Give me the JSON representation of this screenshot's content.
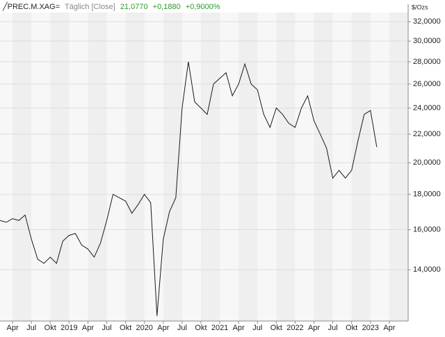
{
  "chart_data": {
    "type": "line",
    "header": {
      "symbol": "╱PREC.M.XAG=",
      "mode": "Täglich [Close]",
      "last": "21,0770",
      "change": "+0,1880",
      "change_pct": "+0,9000%"
    },
    "y_label": "$/Ozs",
    "log_y": true,
    "grid": true,
    "ylim": [
      11.8,
      33
    ],
    "yticks": [
      {
        "value": 14,
        "label": "14,0000"
      },
      {
        "value": 16,
        "label": "16,0000"
      },
      {
        "value": 18,
        "label": "18,0000"
      },
      {
        "value": 20,
        "label": "20,0000"
      },
      {
        "value": 22,
        "label": "22,0000"
      },
      {
        "value": 24,
        "label": "24,0000"
      },
      {
        "value": 26,
        "label": "26,0000"
      },
      {
        "value": 28,
        "label": "28,0000"
      },
      {
        "value": 30,
        "label": "30,0000"
      },
      {
        "value": 32,
        "label": "32,0000"
      }
    ],
    "xlim": [
      "2018-02",
      "2023-07"
    ],
    "xticks": [
      {
        "value": "2018-04",
        "label": "Apr"
      },
      {
        "value": "2018-07",
        "label": "Jul"
      },
      {
        "value": "2018-10",
        "label": "Okt"
      },
      {
        "value": "2019-01",
        "label": "2019"
      },
      {
        "value": "2019-04",
        "label": "Apr"
      },
      {
        "value": "2019-07",
        "label": "Jul"
      },
      {
        "value": "2019-10",
        "label": "Okt"
      },
      {
        "value": "2020-01",
        "label": "2020"
      },
      {
        "value": "2020-04",
        "label": "Apr"
      },
      {
        "value": "2020-07",
        "label": "Jul"
      },
      {
        "value": "2020-10",
        "label": "Okt"
      },
      {
        "value": "2021-01",
        "label": "2021"
      },
      {
        "value": "2021-04",
        "label": "Apr"
      },
      {
        "value": "2021-07",
        "label": "Jul"
      },
      {
        "value": "2021-10",
        "label": "Okt"
      },
      {
        "value": "2022-01",
        "label": "2022"
      },
      {
        "value": "2022-04",
        "label": "Apr"
      },
      {
        "value": "2022-07",
        "label": "Jul"
      },
      {
        "value": "2022-10",
        "label": "Okt"
      },
      {
        "value": "2023-01",
        "label": "2023"
      },
      {
        "value": "2023-04",
        "label": "Apr"
      }
    ],
    "x": [
      "2018-02",
      "2018-03",
      "2018-04",
      "2018-05",
      "2018-06",
      "2018-07",
      "2018-08",
      "2018-09",
      "2018-10",
      "2018-11",
      "2018-12",
      "2019-01",
      "2019-02",
      "2019-03",
      "2019-04",
      "2019-05",
      "2019-06",
      "2019-07",
      "2019-08",
      "2019-09",
      "2019-10",
      "2019-11",
      "2019-12",
      "2020-01",
      "2020-02",
      "2020-03",
      "2020-04",
      "2020-05",
      "2020-06",
      "2020-07",
      "2020-08",
      "2020-09",
      "2020-10",
      "2020-11",
      "2020-12",
      "2021-01",
      "2021-02",
      "2021-03",
      "2021-04",
      "2021-05",
      "2021-06",
      "2021-07",
      "2021-08",
      "2021-09",
      "2021-10",
      "2021-11",
      "2021-12",
      "2022-01",
      "2022-02",
      "2022-03",
      "2022-04",
      "2022-05",
      "2022-06",
      "2022-07",
      "2022-08",
      "2022-09",
      "2022-10",
      "2022-11",
      "2022-12",
      "2023-01",
      "2023-02"
    ],
    "series": [
      {
        "name": "PREC.M.XAG=",
        "color": "#1a1a1a",
        "values": [
          16.5,
          16.4,
          16.6,
          16.5,
          16.8,
          15.5,
          14.5,
          14.3,
          14.6,
          14.3,
          15.4,
          15.7,
          15.8,
          15.2,
          15.0,
          14.6,
          15.3,
          16.5,
          18.0,
          17.8,
          17.6,
          16.9,
          17.4,
          18.0,
          17.5,
          12.0,
          15.5,
          17.0,
          17.8,
          24.0,
          28.0,
          24.5,
          24.0,
          23.5,
          26.0,
          26.5,
          27.0,
          25.0,
          26.0,
          27.8,
          26.0,
          25.5,
          23.5,
          22.5,
          24.0,
          23.5,
          22.8,
          22.5,
          24.0,
          25.0,
          23.0,
          22.0,
          21.0,
          19.0,
          19.5,
          19.0,
          19.5,
          21.5,
          23.5,
          23.8,
          21.077
        ]
      }
    ]
  }
}
